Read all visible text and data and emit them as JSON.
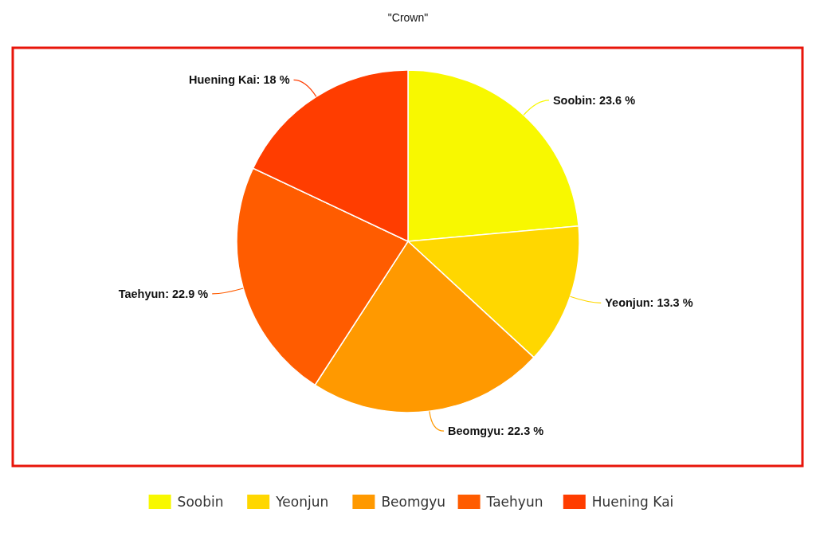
{
  "chart_data": {
    "type": "pie",
    "title": "\"Crown\"",
    "categories": [
      "Soobin",
      "Yeonjun",
      "Beomgyu",
      "Taehyun",
      "Huening Kai"
    ],
    "values": [
      23.6,
      13.3,
      22.3,
      22.9,
      18
    ],
    "value_labels": [
      "Soobin: 23.6 %",
      "Yeonjun: 13.3 %",
      "Beomgyu: 22.3 %",
      "Taehyun: 22.9 %",
      "Huening Kai: 18 %"
    ],
    "colors": [
      "#f8f800",
      "#ffd700",
      "#ff9900",
      "#ff5c00",
      "#ff3d00"
    ],
    "legend": "bottom"
  }
}
